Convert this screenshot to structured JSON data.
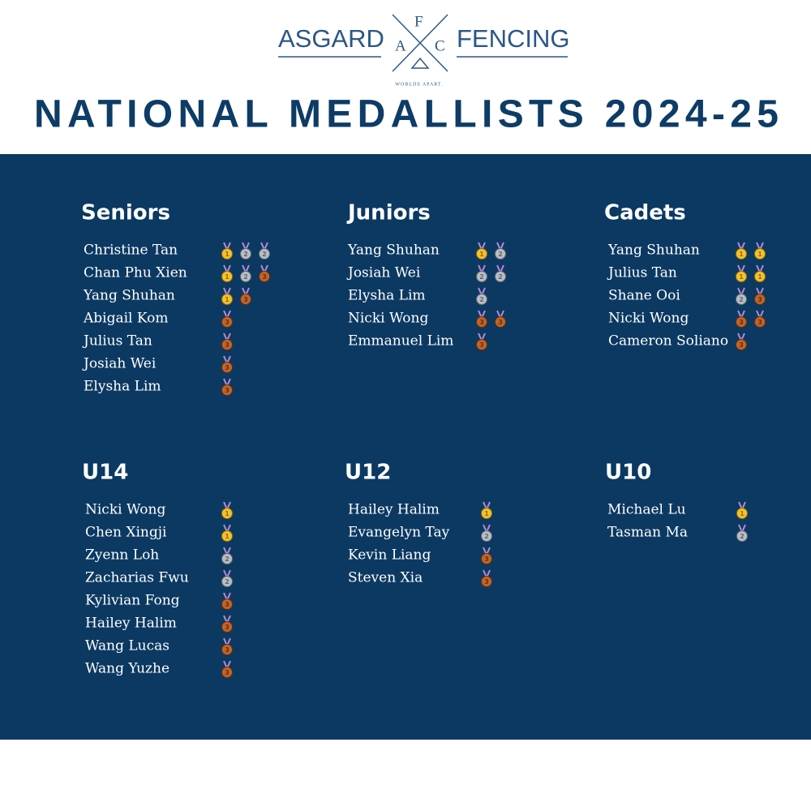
{
  "header": {
    "logo": {
      "left": "ASGARD",
      "right": "FENCING",
      "letters": [
        "F",
        "A",
        "C"
      ],
      "tagline": "WORLDS APART."
    },
    "title": "NATIONAL MEDALLISTS 2024-25"
  },
  "groups": [
    {
      "name": "Seniors",
      "entries": [
        {
          "name": "Christine Tan",
          "medals": [
            1,
            2,
            2
          ]
        },
        {
          "name": "Chan Phu Xien",
          "medals": [
            1,
            2,
            3
          ]
        },
        {
          "name": "Yang Shuhan",
          "medals": [
            1,
            3
          ]
        },
        {
          "name": "Abigail Kom",
          "medals": [
            3
          ]
        },
        {
          "name": "Julius Tan",
          "medals": [
            3
          ]
        },
        {
          "name": "Josiah Wei",
          "medals": [
            3
          ]
        },
        {
          "name": "Elysha Lim",
          "medals": [
            3
          ]
        }
      ]
    },
    {
      "name": "Juniors",
      "entries": [
        {
          "name": "Yang Shuhan",
          "medals": [
            1,
            2
          ]
        },
        {
          "name": "Josiah Wei",
          "medals": [
            2,
            2
          ]
        },
        {
          "name": "Elysha Lim",
          "medals": [
            2
          ]
        },
        {
          "name": "Nicki Wong",
          "medals": [
            3,
            3
          ]
        },
        {
          "name": "Emmanuel Lim",
          "medals": [
            3
          ]
        }
      ]
    },
    {
      "name": "Cadets",
      "entries": [
        {
          "name": "Yang Shuhan",
          "medals": [
            1,
            1
          ]
        },
        {
          "name": "Julius Tan",
          "medals": [
            1,
            1
          ]
        },
        {
          "name": "Shane Ooi",
          "medals": [
            2,
            3
          ]
        },
        {
          "name": "Nicki Wong",
          "medals": [
            3,
            3
          ]
        },
        {
          "name": "Cameron Soliano",
          "medals": [
            3
          ]
        }
      ]
    },
    {
      "name": "U14",
      "entries": [
        {
          "name": "Nicki Wong",
          "medals": [
            1
          ]
        },
        {
          "name": "Chen Xingji",
          "medals": [
            1
          ]
        },
        {
          "name": "Zyenn Loh",
          "medals": [
            2
          ]
        },
        {
          "name": "Zacharias Fwu",
          "medals": [
            2
          ]
        },
        {
          "name": "Kylivian Fong",
          "medals": [
            3
          ]
        },
        {
          "name": "Hailey Halim",
          "medals": [
            3
          ]
        },
        {
          "name": "Wang Lucas",
          "medals": [
            3
          ]
        },
        {
          "name": "Wang Yuzhe",
          "medals": [
            3
          ]
        }
      ]
    },
    {
      "name": "U12",
      "entries": [
        {
          "name": "Hailey Halim",
          "medals": [
            1
          ]
        },
        {
          "name": "Evangelyn Tay",
          "medals": [
            2
          ]
        },
        {
          "name": "Kevin Liang",
          "medals": [
            3
          ]
        },
        {
          "name": "Steven Xia",
          "medals": [
            3
          ]
        }
      ]
    },
    {
      "name": "U10",
      "entries": [
        {
          "name": "Michael Lu",
          "medals": [
            1
          ]
        },
        {
          "name": "Tasman Ma",
          "medals": [
            2
          ]
        }
      ]
    }
  ]
}
